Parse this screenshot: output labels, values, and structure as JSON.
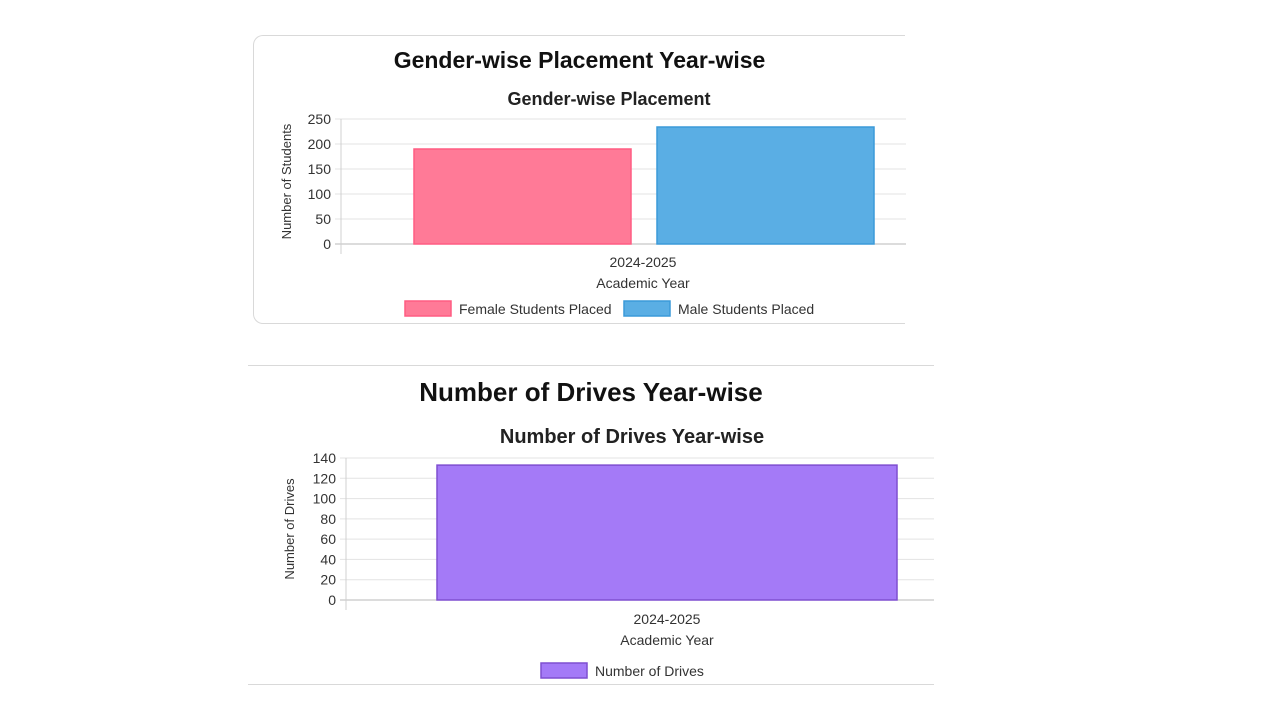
{
  "chart_data": [
    {
      "type": "bar",
      "card_title": "Gender-wise Placement Year-wise",
      "title": "Gender-wise Placement",
      "categories": [
        "2024-2025"
      ],
      "series": [
        {
          "name": "Female Students Placed",
          "values": [
            190
          ],
          "color": "#ff7a97",
          "border": "#ff5c82"
        },
        {
          "name": "Male Students Placed",
          "values": [
            234
          ],
          "color": "#5aaee4",
          "border": "#3b9ad9"
        }
      ],
      "xlabel": "Academic Year",
      "ylabel": "Number of Students",
      "ylim": [
        0,
        250
      ],
      "yticks": [
        "0",
        "50",
        "100",
        "150",
        "200",
        "250"
      ],
      "grid": true,
      "legend": "bottom"
    },
    {
      "type": "bar",
      "card_title": "Number of Drives Year-wise",
      "title": "Number of Drives Year-wise",
      "categories": [
        "2024-2025"
      ],
      "series": [
        {
          "name": "Number of Drives",
          "values": [
            133
          ],
          "color": "#a47af7",
          "border": "#7e4fd0"
        }
      ],
      "xlabel": "Academic Year",
      "ylabel": "Number of Drives",
      "ylim": [
        0,
        140
      ],
      "yticks": [
        "0",
        "20",
        "40",
        "60",
        "80",
        "100",
        "120",
        "140"
      ],
      "grid": true,
      "legend": "bottom"
    }
  ]
}
